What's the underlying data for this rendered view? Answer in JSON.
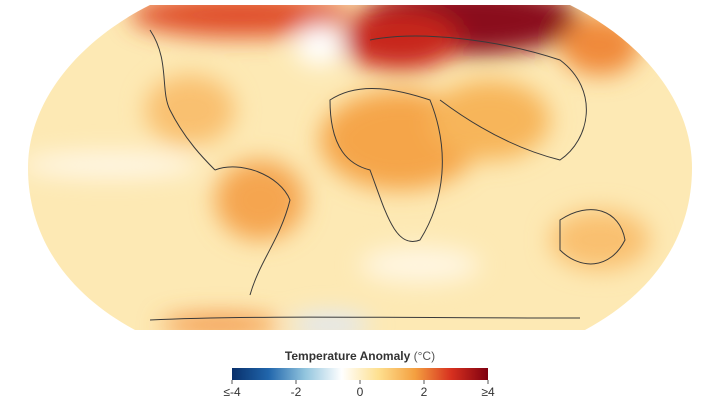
{
  "legend": {
    "title": "Temperature Anomaly",
    "unit": "(°C)",
    "range": [
      -4,
      4
    ],
    "ticks": [
      {
        "value": -4,
        "label": "≤-4"
      },
      -2,
      0,
      2,
      {
        "value": 4,
        "label": "≥4"
      }
    ],
    "colors": [
      "#08306b",
      "#2166ac",
      "#92c5de",
      "#ffffff",
      "#fee090",
      "#f4a040",
      "#d7301f",
      "#7f0010"
    ]
  }
}
